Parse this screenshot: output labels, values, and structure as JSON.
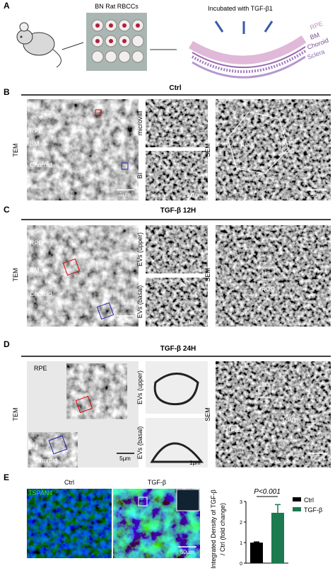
{
  "panel_a": {
    "letter": "A",
    "plate_label": "BN Rat RBCCs",
    "treatment": "Incubated with TGF-β1",
    "layers": [
      "RPE",
      "BM",
      "Choroid",
      "Sclera"
    ]
  },
  "panel_b": {
    "letter": "B",
    "header": "Ctrl",
    "tem": "TEM",
    "tem_labels": [
      "RPE",
      "BM",
      "Choroid"
    ],
    "tem_scale": "5μm",
    "inset_labels": [
      "microvilli",
      "BI"
    ],
    "inset_scale": "500nm",
    "sem": "SEM",
    "sem_label": "RPE",
    "sem_scale": "5μm"
  },
  "panel_c": {
    "letter": "C",
    "header": "TGF-β  12H",
    "tem": "TEM",
    "tem_labels": [
      "RPE",
      "BM",
      "Choroid"
    ],
    "tem_scale": "5μm",
    "inset_labels": [
      "EVs (upper)",
      "EVs (basal)"
    ],
    "inset_scale": "1μm",
    "sem": "SEM",
    "sem_label": "RPE"
  },
  "panel_d": {
    "letter": "D",
    "header": "TGF-β  24H",
    "tem": "TEM",
    "tem_labels": [
      "RPE",
      "BM",
      "Choroid"
    ],
    "tem_scale": "5μm",
    "inset_labels": [
      "EVs (upper)",
      "EVs (basal)"
    ],
    "inset_scale": "1μm",
    "sem": "SEM",
    "sem_labels": [
      "RPE",
      "RPE"
    ],
    "sem_scale": "5μm",
    "sem_inset_scale": "1μm"
  },
  "panel_e": {
    "letter": "E",
    "image_titles": [
      "Ctrl",
      "TGF-β"
    ],
    "stain": "TSPAN4",
    "scale": "50μm"
  },
  "chart_data": {
    "type": "bar",
    "y_label": [
      "Integrated Density of TGF-β",
      "/ Ctrl  (fold change)"
    ],
    "annotation": "P<0.001",
    "categories": [
      "Ctrl",
      "TGF-β"
    ],
    "values": [
      1.0,
      2.45
    ],
    "errors": [
      0.03,
      0.4
    ],
    "colors": [
      "#000000",
      "#1b7a4f"
    ],
    "ylim": [
      0,
      3
    ],
    "yticks": [
      0,
      1,
      2,
      3
    ]
  }
}
